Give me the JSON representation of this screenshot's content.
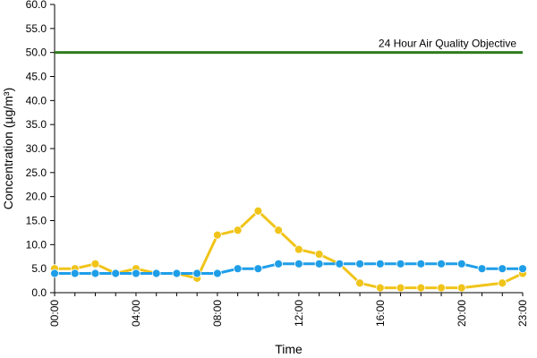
{
  "chart_data": {
    "type": "line",
    "title": "",
    "xlabel": "Time",
    "ylabel": "Concentration (µg/m³)",
    "x": [
      0,
      1,
      2,
      3,
      4,
      5,
      6,
      7,
      8,
      9,
      10,
      11,
      12,
      13,
      14,
      15,
      16,
      17,
      18,
      19,
      20,
      21,
      22,
      23
    ],
    "x_tick_labels": [
      {
        "x": 0,
        "label": "00:00"
      },
      {
        "x": 4,
        "label": "04:00"
      },
      {
        "x": 8,
        "label": "08:00"
      },
      {
        "x": 12,
        "label": "12:00"
      },
      {
        "x": 16,
        "label": "16:00"
      },
      {
        "x": 20,
        "label": "20:00"
      },
      {
        "x": 23,
        "label": "23:00"
      }
    ],
    "y_ticks": [
      "0.0",
      "5.0",
      "10.0",
      "15.0",
      "20.0",
      "25.0",
      "30.0",
      "35.0",
      "40.0",
      "45.0",
      "50.0",
      "55.0",
      "60.0"
    ],
    "xlim": [
      0,
      23
    ],
    "ylim": [
      0,
      60
    ],
    "grid": false,
    "series": [
      {
        "color": "#f0c419",
        "values": [
          5,
          5,
          6,
          4,
          5,
          4,
          4,
          3,
          12,
          13,
          17,
          13,
          9,
          8,
          6,
          2,
          1,
          1,
          1,
          1,
          1,
          null,
          2,
          4
        ]
      },
      {
        "color": "#1f9ee8",
        "values": [
          4,
          4,
          4,
          4,
          4,
          4,
          4,
          4,
          4,
          5,
          5,
          6,
          6,
          6,
          6,
          6,
          6,
          6,
          6,
          6,
          6,
          5,
          5,
          5
        ]
      }
    ],
    "reference_line": {
      "value": 50,
      "label": "24 Hour Air Quality Objective",
      "color": "#2e7d1e"
    }
  }
}
